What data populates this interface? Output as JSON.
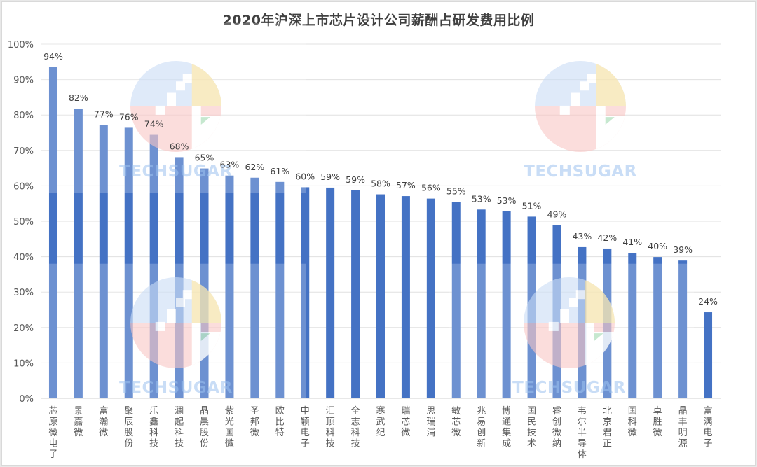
{
  "chart_data": {
    "type": "bar",
    "title": "2020年沪深上市芯片设计公司薪酬占研发费用比例",
    "xlabel": "",
    "ylabel": "",
    "ylim": [
      0,
      100
    ],
    "y_ticks": [
      "0%",
      "10%",
      "20%",
      "30%",
      "40%",
      "50%",
      "60%",
      "70%",
      "80%",
      "90%",
      "100%"
    ],
    "grid": true,
    "legend": "none",
    "bar_color": "#4472C4",
    "categories": [
      "芯原微电子",
      "景嘉微",
      "富瀚微",
      "聚辰股份",
      "乐鑫科技",
      "澜起科技",
      "晶晨股份",
      "紫光国微",
      "圣邦微",
      "欧比特",
      "中颖电子",
      "汇顶科技",
      "全志科技",
      "寒武纪",
      "瑞芯微",
      "思瑞浦",
      "敏芯微",
      "兆易创新",
      "博通集成",
      "国民技术",
      "睿创微纳",
      "韦尔半导体",
      "北京君正",
      "国科微",
      "卓胜微",
      "晶丰明源",
      "富满电子"
    ],
    "values": [
      93.5,
      81.8,
      77.2,
      76.4,
      74.4,
      68.1,
      64.9,
      62.9,
      62.3,
      61.1,
      59.6,
      59.5,
      58.7,
      57.6,
      57.1,
      56.4,
      55.4,
      53.3,
      52.8,
      51.3,
      48.9,
      42.7,
      42.3,
      41.1,
      39.9,
      38.9,
      24.3
    ],
    "data_labels": [
      "94%",
      "82%",
      "77%",
      "76%",
      "74%",
      "68%",
      "65%",
      "63%",
      "62%",
      "61%",
      "60%",
      "59%",
      "59%",
      "58%",
      "57%",
      "56%",
      "55%",
      "53%",
      "53%",
      "51%",
      "49%",
      "43%",
      "42%",
      "41%",
      "40%",
      "39%",
      "24%"
    ]
  },
  "watermark": {
    "text": "TECHSUGAR",
    "colors": {
      "blue": "#c9dcf5",
      "red": "#f8c6c4",
      "yellow": "#fbe6a8",
      "green": "#b8e3c4"
    }
  }
}
